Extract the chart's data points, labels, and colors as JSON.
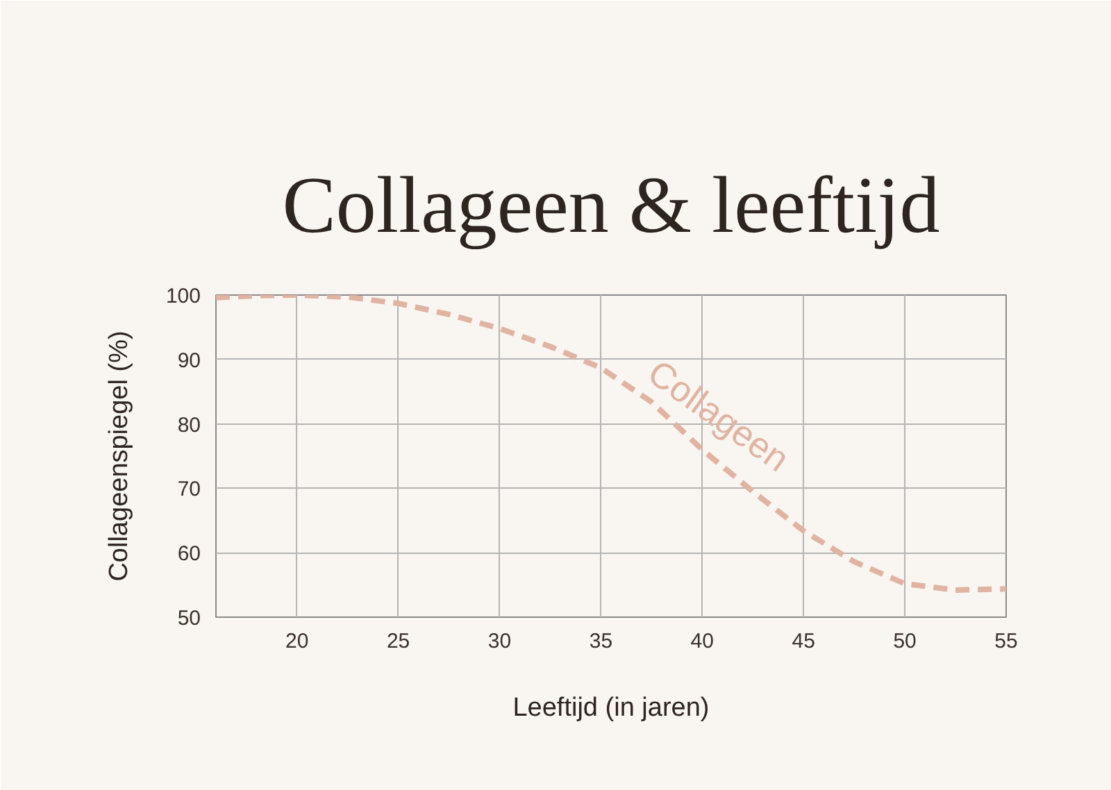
{
  "chart_data": {
    "type": "line",
    "title": "Collageen & leeftijd",
    "xlabel": "Leeftijd (in jaren)",
    "ylabel": "Collageenspiegel (%)",
    "x": [
      16,
      18,
      20,
      22.5,
      25,
      27.5,
      30,
      32.5,
      35,
      37.5,
      40,
      42.5,
      45,
      47.5,
      50,
      52.5,
      55
    ],
    "series": [
      {
        "name": "Collageen",
        "color": "#e0b3a2",
        "values": [
          99.6,
          99.9,
          100,
          99.7,
          98.7,
          97,
          94.8,
          92,
          88.7,
          83.4,
          76,
          69.5,
          63.4,
          58.6,
          55.2,
          54.2,
          54.4
        ]
      }
    ],
    "xlim": [
      16,
      55
    ],
    "xticks": [
      20,
      25,
      30,
      35,
      40,
      45,
      50,
      55
    ],
    "ylim": [
      50,
      100
    ],
    "yticks": [
      50,
      60,
      70,
      80,
      90,
      100
    ],
    "grid": true,
    "line_style": "dashed",
    "marker": "none"
  }
}
